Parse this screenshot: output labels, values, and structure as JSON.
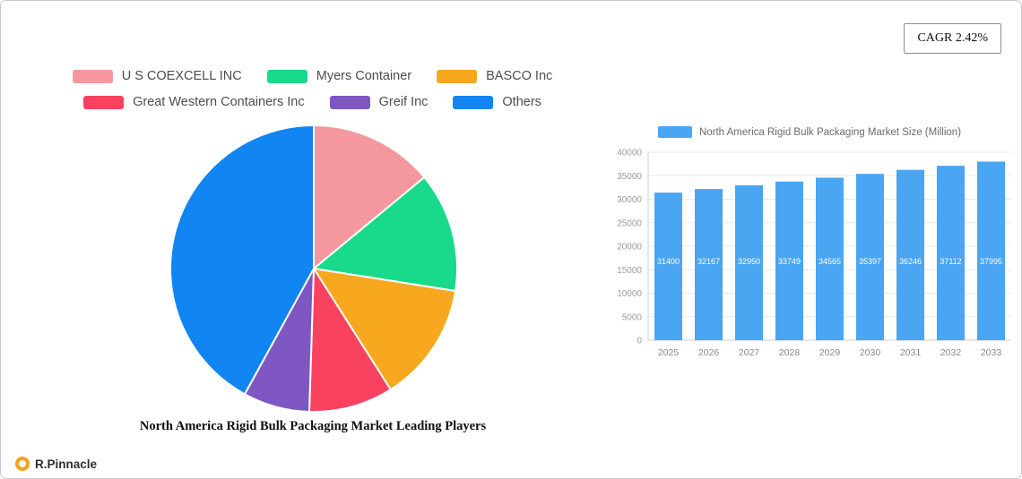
{
  "header": {
    "cagr_badge": "CAGR 2.42%"
  },
  "footer": {
    "brand": "R.Pinnacle"
  },
  "chart_data": [
    {
      "type": "pie",
      "title": "North America Rigid Bulk Packaging Market Leading Players",
      "labels": [
        "U S  COEXCELL INC",
        "Myers Container",
        "BASCO Inc",
        "Great Western Containers Inc",
        "Greif Inc",
        "Others"
      ],
      "values": [
        14,
        13.5,
        13.5,
        9.5,
        7.5,
        42
      ],
      "values_unit": "percent (estimated from slice angles)",
      "colors": [
        "#f4979e",
        "#19da8a",
        "#f7a81f",
        "#f8425f",
        "#7e57c2",
        "#1185f2"
      ],
      "legend_position": "top",
      "start_angle_deg": 0,
      "direction": "clockwise"
    },
    {
      "type": "bar",
      "series_label": "North America Rigid Bulk Packaging Market Size (Million)",
      "categories": [
        "2025",
        "2026",
        "2027",
        "2028",
        "2029",
        "2030",
        "2031",
        "2032",
        "2033"
      ],
      "values": [
        31400,
        32167,
        32950,
        33749,
        34565,
        35397,
        36246,
        37112,
        37995
      ],
      "ylim": [
        0,
        40000
      ],
      "ytick_step": 5000,
      "bar_color": "#4aa5f2",
      "grid": true,
      "legend_position": "top"
    }
  ]
}
